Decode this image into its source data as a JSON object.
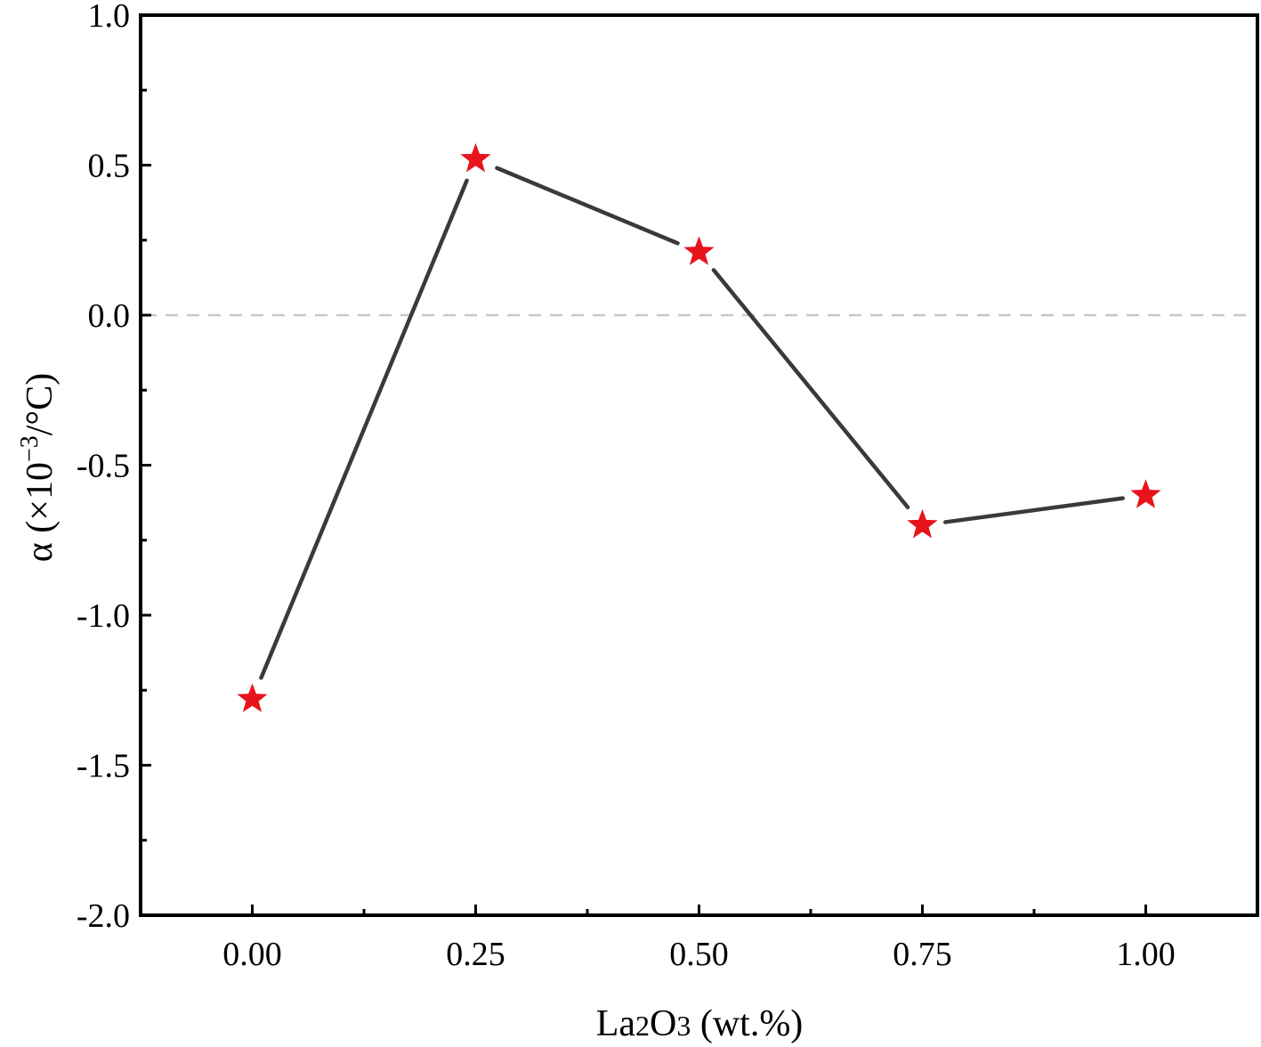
{
  "chart_data": {
    "type": "line",
    "title": "",
    "xlabel": "La2O3 (wt.%)",
    "xlabel_parts": [
      "La",
      "2",
      "O",
      "3",
      " (wt.%)"
    ],
    "ylabel": "α (×10−3/°C)",
    "ylabel_parts": [
      "α (×10",
      "−3",
      "/°C)"
    ],
    "x": [
      0.0,
      0.25,
      0.5,
      0.75,
      1.0
    ],
    "x_tick_labels": [
      "0.00",
      "0.25",
      "0.50",
      "0.75",
      "1.00"
    ],
    "y_ticks": [
      1.0,
      0.5,
      0.0,
      -0.5,
      -1.0,
      -1.5,
      -2.0
    ],
    "y_tick_labels": [
      "1.0",
      "0.5",
      "0.0",
      "-0.5",
      "-1.0",
      "-1.5",
      "-2.0"
    ],
    "xlim": [
      -0.125,
      1.125
    ],
    "ylim": [
      -2.0,
      1.0
    ],
    "reference_line": {
      "y": 0.0,
      "style": "dashed",
      "color": "#c8c8c8"
    },
    "series": [
      {
        "values": [
          -1.28,
          0.52,
          0.21,
          -0.7,
          -0.6
        ],
        "line_color": "#3a3a3a",
        "marker": "star",
        "marker_color": "#e8141c"
      }
    ],
    "grid": false,
    "legend": "none"
  }
}
